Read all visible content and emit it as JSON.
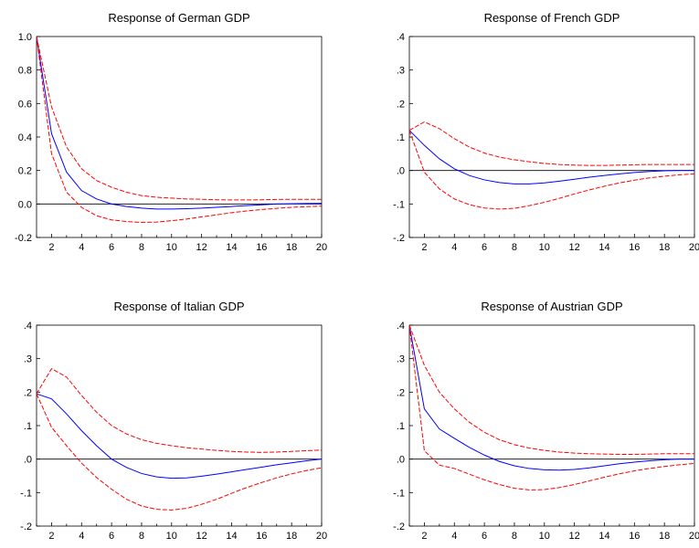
{
  "chart_data": [
    {
      "type": "line",
      "title": "Response of German GDP",
      "xlabel": "",
      "ylabel": "",
      "xlim": [
        1,
        20
      ],
      "ylim": [
        -0.2,
        1.0
      ],
      "x_ticks": [
        2,
        4,
        6,
        8,
        10,
        12,
        14,
        16,
        18,
        20
      ],
      "y_ticks": [
        {
          "v": -0.2,
          "label": "-0.2"
        },
        {
          "v": 0.0,
          "label": "0.0"
        },
        {
          "v": 0.2,
          "label": "0.2"
        },
        {
          "v": 0.4,
          "label": "0.4"
        },
        {
          "v": 0.6,
          "label": "0.6"
        },
        {
          "v": 0.8,
          "label": "0.8"
        },
        {
          "v": 1.0,
          "label": "1.0"
        }
      ],
      "zero_line": true,
      "x": [
        1,
        2,
        3,
        4,
        5,
        6,
        7,
        8,
        9,
        10,
        11,
        12,
        13,
        14,
        15,
        16,
        17,
        18,
        19,
        20
      ],
      "series": [
        {
          "role": "response",
          "color": "#0000ff",
          "dashed": false,
          "values": [
            1.0,
            0.42,
            0.19,
            0.08,
            0.03,
            0.0,
            -0.015,
            -0.025,
            -0.03,
            -0.03,
            -0.028,
            -0.025,
            -0.02,
            -0.015,
            -0.01,
            -0.005,
            0.0,
            0.002,
            0.003,
            0.004
          ]
        },
        {
          "role": "upper band",
          "color": "#ff0000",
          "dashed": true,
          "values": [
            1.0,
            0.58,
            0.34,
            0.21,
            0.14,
            0.1,
            0.07,
            0.05,
            0.04,
            0.035,
            0.03,
            0.028,
            0.025,
            0.024,
            0.024,
            0.025,
            0.027,
            0.028,
            0.028,
            0.028
          ]
        },
        {
          "role": "lower band",
          "color": "#ff0000",
          "dashed": true,
          "values": [
            1.0,
            0.3,
            0.07,
            -0.02,
            -0.07,
            -0.095,
            -0.105,
            -0.11,
            -0.108,
            -0.1,
            -0.09,
            -0.077,
            -0.065,
            -0.052,
            -0.042,
            -0.033,
            -0.026,
            -0.02,
            -0.016,
            -0.013
          ]
        }
      ]
    },
    {
      "type": "line",
      "title": "Response of French GDP",
      "xlabel": "",
      "ylabel": "",
      "xlim": [
        1,
        20
      ],
      "ylim": [
        -0.2,
        0.4
      ],
      "x_ticks": [
        2,
        4,
        6,
        8,
        10,
        12,
        14,
        16,
        18,
        20
      ],
      "y_ticks": [
        {
          "v": -0.2,
          "label": "-.2"
        },
        {
          "v": -0.1,
          "label": "-.1"
        },
        {
          "v": 0.0,
          "label": ".0"
        },
        {
          "v": 0.1,
          "label": ".1"
        },
        {
          "v": 0.2,
          "label": ".2"
        },
        {
          "v": 0.3,
          "label": ".3"
        },
        {
          "v": 0.4,
          "label": ".4"
        }
      ],
      "zero_line": true,
      "x": [
        1,
        2,
        3,
        4,
        5,
        6,
        7,
        8,
        9,
        10,
        11,
        12,
        13,
        14,
        15,
        16,
        17,
        18,
        19,
        20
      ],
      "series": [
        {
          "role": "response",
          "color": "#0000ff",
          "dashed": false,
          "values": [
            0.12,
            0.075,
            0.035,
            0.005,
            -0.015,
            -0.028,
            -0.036,
            -0.04,
            -0.04,
            -0.037,
            -0.032,
            -0.026,
            -0.02,
            -0.015,
            -0.01,
            -0.006,
            -0.003,
            -0.001,
            0.0,
            0.0
          ]
        },
        {
          "role": "upper band",
          "color": "#ff0000",
          "dashed": true,
          "values": [
            0.12,
            0.145,
            0.125,
            0.095,
            0.07,
            0.052,
            0.04,
            0.032,
            0.026,
            0.021,
            0.018,
            0.016,
            0.015,
            0.015,
            0.016,
            0.017,
            0.018,
            0.018,
            0.018,
            0.018
          ]
        },
        {
          "role": "lower band",
          "color": "#ff0000",
          "dashed": true,
          "values": [
            0.12,
            -0.005,
            -0.055,
            -0.085,
            -0.102,
            -0.112,
            -0.115,
            -0.113,
            -0.105,
            -0.095,
            -0.083,
            -0.07,
            -0.058,
            -0.047,
            -0.037,
            -0.029,
            -0.022,
            -0.017,
            -0.013,
            -0.01
          ]
        }
      ]
    },
    {
      "type": "line",
      "title": "Response of Italian GDP",
      "xlabel": "",
      "ylabel": "",
      "xlim": [
        1,
        20
      ],
      "ylim": [
        -0.2,
        0.4
      ],
      "x_ticks": [
        2,
        4,
        6,
        8,
        10,
        12,
        14,
        16,
        18,
        20
      ],
      "y_ticks": [
        {
          "v": -0.2,
          "label": "-.2"
        },
        {
          "v": -0.1,
          "label": "-.1"
        },
        {
          "v": 0.0,
          "label": ".0"
        },
        {
          "v": 0.1,
          "label": ".1"
        },
        {
          "v": 0.2,
          "label": ".2"
        },
        {
          "v": 0.3,
          "label": ".3"
        },
        {
          "v": 0.4,
          "label": ".4"
        }
      ],
      "zero_line": true,
      "x": [
        1,
        2,
        3,
        4,
        5,
        6,
        7,
        8,
        9,
        10,
        11,
        12,
        13,
        14,
        15,
        16,
        17,
        18,
        19,
        20
      ],
      "series": [
        {
          "role": "response",
          "color": "#0000ff",
          "dashed": false,
          "values": [
            0.195,
            0.18,
            0.135,
            0.085,
            0.04,
            0.0,
            -0.025,
            -0.043,
            -0.053,
            -0.057,
            -0.056,
            -0.051,
            -0.045,
            -0.038,
            -0.031,
            -0.024,
            -0.017,
            -0.011,
            -0.005,
            0.0
          ]
        },
        {
          "role": "upper band",
          "color": "#ff0000",
          "dashed": true,
          "values": [
            0.195,
            0.27,
            0.245,
            0.19,
            0.14,
            0.1,
            0.075,
            0.058,
            0.047,
            0.04,
            0.034,
            0.03,
            0.026,
            0.023,
            0.021,
            0.02,
            0.021,
            0.023,
            0.025,
            0.027
          ]
        },
        {
          "role": "lower band",
          "color": "#ff0000",
          "dashed": true,
          "values": [
            0.195,
            0.095,
            0.04,
            -0.012,
            -0.055,
            -0.09,
            -0.12,
            -0.14,
            -0.15,
            -0.152,
            -0.147,
            -0.135,
            -0.12,
            -0.102,
            -0.085,
            -0.07,
            -0.056,
            -0.044,
            -0.034,
            -0.026
          ]
        }
      ]
    },
    {
      "type": "line",
      "title": "Response of Austrian GDP",
      "xlabel": "",
      "ylabel": "",
      "xlim": [
        1,
        20
      ],
      "ylim": [
        -0.2,
        0.4
      ],
      "x_ticks": [
        2,
        4,
        6,
        8,
        10,
        12,
        14,
        16,
        18,
        20
      ],
      "y_ticks": [
        {
          "v": -0.2,
          "label": "-.2"
        },
        {
          "v": -0.1,
          "label": "-.1"
        },
        {
          "v": 0.0,
          "label": ".0"
        },
        {
          "v": 0.1,
          "label": ".1"
        },
        {
          "v": 0.2,
          "label": ".2"
        },
        {
          "v": 0.3,
          "label": ".3"
        },
        {
          "v": 0.4,
          "label": ".4"
        }
      ],
      "zero_line": true,
      "x": [
        1,
        2,
        3,
        4,
        5,
        6,
        7,
        8,
        9,
        10,
        11,
        12,
        13,
        14,
        15,
        16,
        17,
        18,
        19,
        20
      ],
      "series": [
        {
          "role": "response",
          "color": "#0000ff",
          "dashed": false,
          "values": [
            0.4,
            0.15,
            0.09,
            0.062,
            0.035,
            0.012,
            -0.007,
            -0.02,
            -0.028,
            -0.032,
            -0.033,
            -0.031,
            -0.026,
            -0.02,
            -0.014,
            -0.009,
            -0.005,
            -0.002,
            0.0,
            0.0
          ]
        },
        {
          "role": "upper band",
          "color": "#ff0000",
          "dashed": true,
          "values": [
            0.4,
            0.28,
            0.2,
            0.15,
            0.11,
            0.08,
            0.058,
            0.043,
            0.033,
            0.026,
            0.021,
            0.018,
            0.016,
            0.015,
            0.014,
            0.014,
            0.015,
            0.016,
            0.016,
            0.016
          ]
        },
        {
          "role": "lower band",
          "color": "#ff0000",
          "dashed": true,
          "values": [
            0.4,
            0.025,
            -0.018,
            -0.028,
            -0.045,
            -0.062,
            -0.076,
            -0.087,
            -0.092,
            -0.091,
            -0.085,
            -0.076,
            -0.065,
            -0.054,
            -0.044,
            -0.035,
            -0.028,
            -0.022,
            -0.017,
            -0.013
          ]
        }
      ]
    }
  ]
}
